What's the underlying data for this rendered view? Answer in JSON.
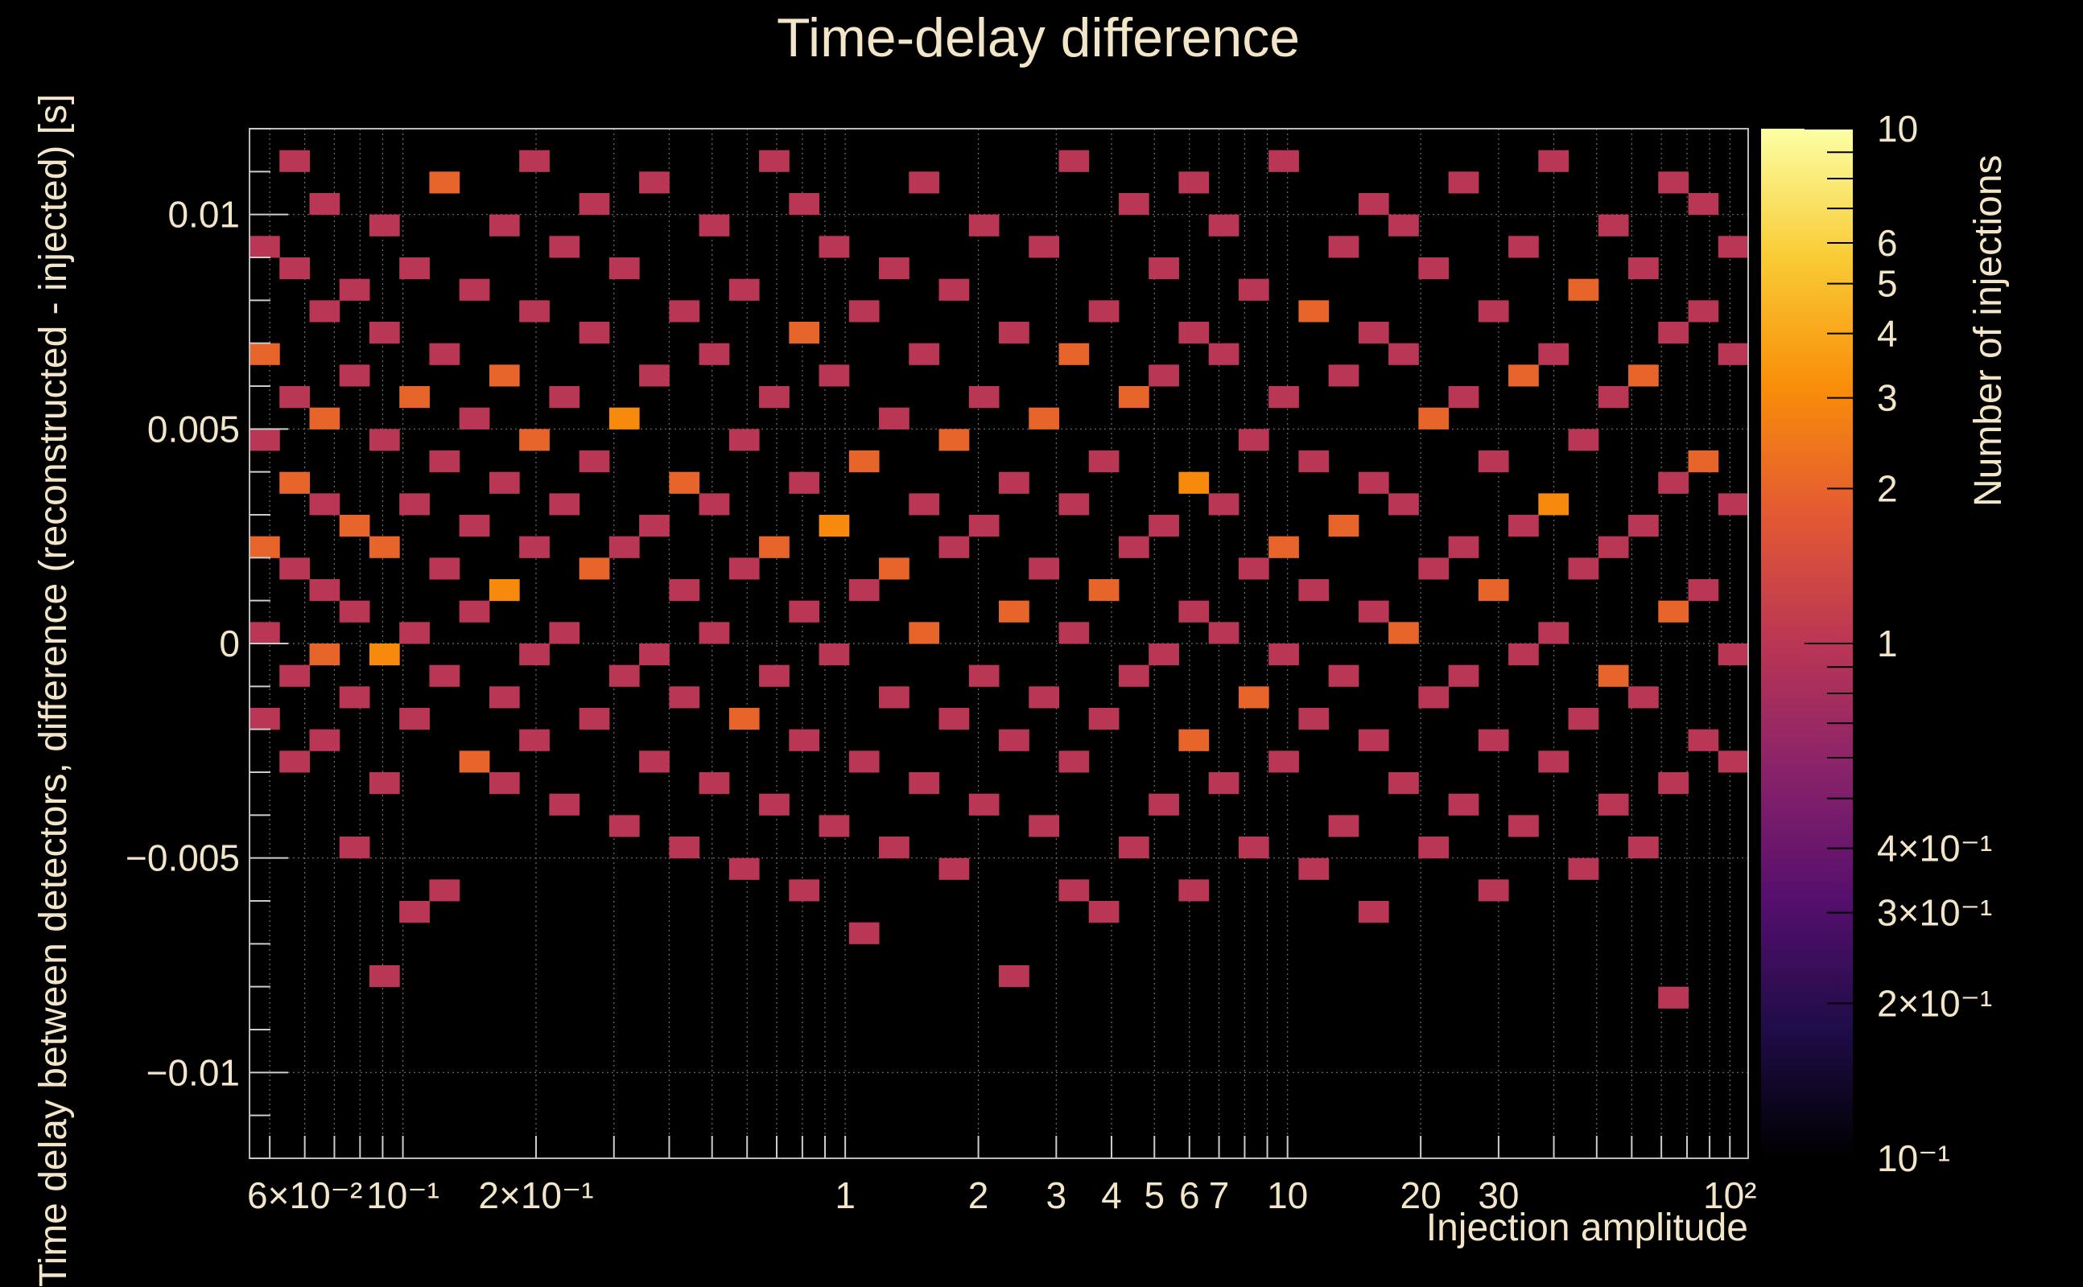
{
  "chart_data": {
    "type": "heatmap",
    "title": "Time-delay difference",
    "xlabel": "Injection amplitude",
    "ylabel": "Time delay between detectors, difference (reconstructed - injected) [s]",
    "zlabel": "Number of injections",
    "x_scale": "log",
    "z_scale": "log",
    "xlim": [
      0.045,
      110
    ],
    "ylim": [
      -0.012,
      0.012
    ],
    "zlim": [
      0.1,
      10
    ],
    "grid": true,
    "x_ticks": [
      {
        "value": 0.06,
        "label": "6×10⁻²"
      },
      {
        "value": 0.1,
        "label": "10⁻¹"
      },
      {
        "value": 0.2,
        "label": "2×10⁻¹"
      },
      {
        "value": 1,
        "label": "1"
      },
      {
        "value": 2,
        "label": "2"
      },
      {
        "value": 3,
        "label": "3"
      },
      {
        "value": 4,
        "label": "4"
      },
      {
        "value": 5,
        "label": "5"
      },
      {
        "value": 6,
        "label": "6"
      },
      {
        "value": 7,
        "label": "7"
      },
      {
        "value": 10,
        "label": "10"
      },
      {
        "value": 20,
        "label": "20"
      },
      {
        "value": 30,
        "label": "30"
      },
      {
        "value": 100,
        "label": "10²"
      }
    ],
    "y_ticks": [
      {
        "value": 0.01,
        "label": "0.01"
      },
      {
        "value": 0.005,
        "label": "0.005"
      },
      {
        "value": 0,
        "label": "0"
      },
      {
        "value": -0.005,
        "label": "−0.005"
      },
      {
        "value": -0.01,
        "label": "−0.01"
      }
    ],
    "z_ticks": [
      {
        "value": 10,
        "label": "10"
      },
      {
        "value": 6,
        "label": "6"
      },
      {
        "value": 5,
        "label": "5"
      },
      {
        "value": 4,
        "label": "4"
      },
      {
        "value": 3,
        "label": "3"
      },
      {
        "value": 2,
        "label": "2"
      },
      {
        "value": 1,
        "label": "1"
      },
      {
        "value": 0.4,
        "label": "4×10⁻¹"
      },
      {
        "value": 0.3,
        "label": "3×10⁻¹"
      },
      {
        "value": 0.2,
        "label": "2×10⁻¹"
      },
      {
        "value": 0.1,
        "label": "10⁻¹"
      }
    ],
    "colormap": [
      "#000000",
      "#1f0c48",
      "#550f6d",
      "#88226a",
      "#ba3655",
      "#e35933",
      "#f98e09",
      "#f9cb35",
      "#fcffa4"
    ],
    "n_x_bins": 50,
    "n_y_bins": 48,
    "cells": [
      [
        0,
        20,
        1
      ],
      [
        0,
        24,
        1
      ],
      [
        0,
        28,
        2
      ],
      [
        0,
        33,
        1
      ],
      [
        0,
        37,
        2
      ],
      [
        0,
        42,
        1
      ],
      [
        1,
        18,
        1
      ],
      [
        1,
        22,
        1
      ],
      [
        1,
        27,
        1
      ],
      [
        1,
        31,
        2
      ],
      [
        1,
        35,
        1
      ],
      [
        1,
        41,
        1
      ],
      [
        1,
        46,
        1
      ],
      [
        2,
        19,
        1
      ],
      [
        2,
        23,
        2
      ],
      [
        2,
        26,
        1
      ],
      [
        2,
        30,
        1
      ],
      [
        2,
        34,
        2
      ],
      [
        2,
        39,
        1
      ],
      [
        2,
        44,
        1
      ],
      [
        3,
        14,
        1
      ],
      [
        3,
        21,
        1
      ],
      [
        3,
        25,
        1
      ],
      [
        3,
        29,
        2
      ],
      [
        3,
        36,
        1
      ],
      [
        3,
        40,
        1
      ],
      [
        4,
        8,
        1
      ],
      [
        4,
        17,
        1
      ],
      [
        4,
        23,
        3
      ],
      [
        4,
        28,
        2
      ],
      [
        4,
        33,
        1
      ],
      [
        4,
        38,
        1
      ],
      [
        4,
        43,
        1
      ],
      [
        5,
        11,
        1
      ],
      [
        5,
        20,
        1
      ],
      [
        5,
        24,
        1
      ],
      [
        5,
        30,
        1
      ],
      [
        5,
        35,
        2
      ],
      [
        5,
        41,
        1
      ],
      [
        6,
        12,
        1
      ],
      [
        6,
        22,
        1
      ],
      [
        6,
        27,
        1
      ],
      [
        6,
        32,
        1
      ],
      [
        6,
        37,
        1
      ],
      [
        6,
        45,
        2
      ],
      [
        7,
        18,
        2
      ],
      [
        7,
        25,
        1
      ],
      [
        7,
        29,
        1
      ],
      [
        7,
        34,
        1
      ],
      [
        7,
        40,
        1
      ],
      [
        8,
        17,
        1
      ],
      [
        8,
        21,
        1
      ],
      [
        8,
        26,
        3
      ],
      [
        8,
        31,
        1
      ],
      [
        8,
        36,
        2
      ],
      [
        8,
        43,
        1
      ],
      [
        9,
        19,
        1
      ],
      [
        9,
        23,
        1
      ],
      [
        9,
        28,
        1
      ],
      [
        9,
        33,
        2
      ],
      [
        9,
        39,
        1
      ],
      [
        9,
        46,
        1
      ],
      [
        10,
        16,
        1
      ],
      [
        10,
        24,
        1
      ],
      [
        10,
        30,
        1
      ],
      [
        10,
        35,
        1
      ],
      [
        10,
        42,
        1
      ],
      [
        11,
        20,
        1
      ],
      [
        11,
        27,
        2
      ],
      [
        11,
        32,
        1
      ],
      [
        11,
        38,
        1
      ],
      [
        11,
        44,
        1
      ],
      [
        12,
        15,
        1
      ],
      [
        12,
        22,
        1
      ],
      [
        12,
        28,
        1
      ],
      [
        12,
        34,
        3
      ],
      [
        12,
        41,
        1
      ],
      [
        13,
        18,
        1
      ],
      [
        13,
        23,
        1
      ],
      [
        13,
        29,
        1
      ],
      [
        13,
        36,
        1
      ],
      [
        13,
        45,
        1
      ],
      [
        14,
        14,
        1
      ],
      [
        14,
        21,
        1
      ],
      [
        14,
        26,
        1
      ],
      [
        14,
        31,
        2
      ],
      [
        14,
        39,
        1
      ],
      [
        15,
        17,
        1
      ],
      [
        15,
        24,
        1
      ],
      [
        15,
        30,
        1
      ],
      [
        15,
        37,
        1
      ],
      [
        15,
        43,
        1
      ],
      [
        16,
        13,
        1
      ],
      [
        16,
        20,
        2
      ],
      [
        16,
        27,
        1
      ],
      [
        16,
        33,
        1
      ],
      [
        16,
        40,
        1
      ],
      [
        17,
        16,
        1
      ],
      [
        17,
        22,
        1
      ],
      [
        17,
        28,
        2
      ],
      [
        17,
        35,
        1
      ],
      [
        17,
        46,
        1
      ],
      [
        18,
        12,
        1
      ],
      [
        18,
        19,
        1
      ],
      [
        18,
        25,
        1
      ],
      [
        18,
        31,
        1
      ],
      [
        18,
        38,
        2
      ],
      [
        18,
        44,
        1
      ],
      [
        19,
        15,
        1
      ],
      [
        19,
        23,
        1
      ],
      [
        19,
        29,
        3
      ],
      [
        19,
        36,
        1
      ],
      [
        19,
        42,
        1
      ],
      [
        20,
        10,
        1
      ],
      [
        20,
        18,
        1
      ],
      [
        20,
        26,
        1
      ],
      [
        20,
        32,
        2
      ],
      [
        20,
        39,
        1
      ],
      [
        21,
        14,
        1
      ],
      [
        21,
        21,
        1
      ],
      [
        21,
        27,
        2
      ],
      [
        21,
        34,
        1
      ],
      [
        21,
        41,
        1
      ],
      [
        22,
        17,
        1
      ],
      [
        22,
        24,
        2
      ],
      [
        22,
        30,
        1
      ],
      [
        22,
        37,
        1
      ],
      [
        22,
        45,
        1
      ],
      [
        23,
        13,
        1
      ],
      [
        23,
        20,
        1
      ],
      [
        23,
        28,
        1
      ],
      [
        23,
        33,
        2
      ],
      [
        23,
        40,
        1
      ],
      [
        24,
        16,
        1
      ],
      [
        24,
        22,
        1
      ],
      [
        24,
        29,
        1
      ],
      [
        24,
        35,
        1
      ],
      [
        24,
        43,
        1
      ],
      [
        25,
        8,
        1
      ],
      [
        25,
        19,
        1
      ],
      [
        25,
        25,
        2
      ],
      [
        25,
        31,
        1
      ],
      [
        25,
        38,
        1
      ],
      [
        26,
        15,
        1
      ],
      [
        26,
        21,
        1
      ],
      [
        26,
        27,
        1
      ],
      [
        26,
        34,
        2
      ],
      [
        26,
        42,
        1
      ],
      [
        27,
        12,
        1
      ],
      [
        27,
        18,
        1
      ],
      [
        27,
        24,
        1
      ],
      [
        27,
        30,
        1
      ],
      [
        27,
        37,
        2
      ],
      [
        27,
        46,
        1
      ],
      [
        28,
        11,
        1
      ],
      [
        28,
        20,
        1
      ],
      [
        28,
        26,
        2
      ],
      [
        28,
        32,
        1
      ],
      [
        28,
        39,
        1
      ],
      [
        29,
        14,
        1
      ],
      [
        29,
        22,
        1
      ],
      [
        29,
        28,
        1
      ],
      [
        29,
        35,
        2
      ],
      [
        29,
        44,
        1
      ],
      [
        30,
        16,
        1
      ],
      [
        30,
        23,
        1
      ],
      [
        30,
        29,
        1
      ],
      [
        30,
        36,
        1
      ],
      [
        30,
        41,
        1
      ],
      [
        31,
        12,
        1
      ],
      [
        31,
        19,
        2
      ],
      [
        31,
        25,
        1
      ],
      [
        31,
        31,
        3
      ],
      [
        31,
        38,
        1
      ],
      [
        31,
        45,
        1
      ],
      [
        32,
        17,
        1
      ],
      [
        32,
        24,
        1
      ],
      [
        32,
        30,
        1
      ],
      [
        32,
        37,
        1
      ],
      [
        32,
        43,
        1
      ],
      [
        33,
        14,
        1
      ],
      [
        33,
        21,
        2
      ],
      [
        33,
        27,
        1
      ],
      [
        33,
        33,
        1
      ],
      [
        33,
        40,
        1
      ],
      [
        34,
        18,
        1
      ],
      [
        34,
        23,
        1
      ],
      [
        34,
        28,
        2
      ],
      [
        34,
        35,
        1
      ],
      [
        34,
        46,
        1
      ],
      [
        35,
        13,
        1
      ],
      [
        35,
        20,
        1
      ],
      [
        35,
        26,
        1
      ],
      [
        35,
        32,
        1
      ],
      [
        35,
        39,
        2
      ],
      [
        36,
        15,
        1
      ],
      [
        36,
        22,
        1
      ],
      [
        36,
        29,
        2
      ],
      [
        36,
        36,
        1
      ],
      [
        36,
        42,
        1
      ],
      [
        37,
        11,
        1
      ],
      [
        37,
        19,
        1
      ],
      [
        37,
        25,
        1
      ],
      [
        37,
        31,
        1
      ],
      [
        37,
        38,
        1
      ],
      [
        37,
        44,
        1
      ],
      [
        38,
        17,
        1
      ],
      [
        38,
        24,
        2
      ],
      [
        38,
        30,
        1
      ],
      [
        38,
        37,
        1
      ],
      [
        38,
        43,
        1
      ],
      [
        39,
        14,
        1
      ],
      [
        39,
        21,
        1
      ],
      [
        39,
        27,
        1
      ],
      [
        39,
        34,
        2
      ],
      [
        39,
        41,
        1
      ],
      [
        40,
        16,
        1
      ],
      [
        40,
        22,
        1
      ],
      [
        40,
        28,
        1
      ],
      [
        40,
        35,
        1
      ],
      [
        40,
        45,
        1
      ],
      [
        41,
        12,
        1
      ],
      [
        41,
        19,
        1
      ],
      [
        41,
        26,
        2
      ],
      [
        41,
        32,
        1
      ],
      [
        41,
        39,
        1
      ],
      [
        42,
        15,
        1
      ],
      [
        42,
        23,
        1
      ],
      [
        42,
        29,
        1
      ],
      [
        42,
        36,
        2
      ],
      [
        42,
        42,
        1
      ],
      [
        43,
        18,
        1
      ],
      [
        43,
        24,
        1
      ],
      [
        43,
        30,
        3
      ],
      [
        43,
        37,
        1
      ],
      [
        43,
        46,
        1
      ],
      [
        44,
        13,
        1
      ],
      [
        44,
        20,
        1
      ],
      [
        44,
        27,
        1
      ],
      [
        44,
        33,
        1
      ],
      [
        44,
        40,
        2
      ],
      [
        45,
        16,
        1
      ],
      [
        45,
        22,
        2
      ],
      [
        45,
        28,
        1
      ],
      [
        45,
        35,
        1
      ],
      [
        45,
        43,
        1
      ],
      [
        46,
        14,
        1
      ],
      [
        46,
        21,
        1
      ],
      [
        46,
        29,
        1
      ],
      [
        46,
        36,
        2
      ],
      [
        46,
        41,
        1
      ],
      [
        47,
        7,
        1
      ],
      [
        47,
        17,
        1
      ],
      [
        47,
        25,
        2
      ],
      [
        47,
        31,
        1
      ],
      [
        47,
        38,
        1
      ],
      [
        47,
        45,
        1
      ],
      [
        48,
        19,
        1
      ],
      [
        48,
        26,
        1
      ],
      [
        48,
        32,
        2
      ],
      [
        48,
        39,
        1
      ],
      [
        48,
        44,
        1
      ],
      [
        49,
        18,
        1
      ],
      [
        49,
        23,
        1
      ],
      [
        49,
        30,
        1
      ],
      [
        49,
        37,
        1
      ],
      [
        49,
        42,
        1
      ]
    ]
  }
}
